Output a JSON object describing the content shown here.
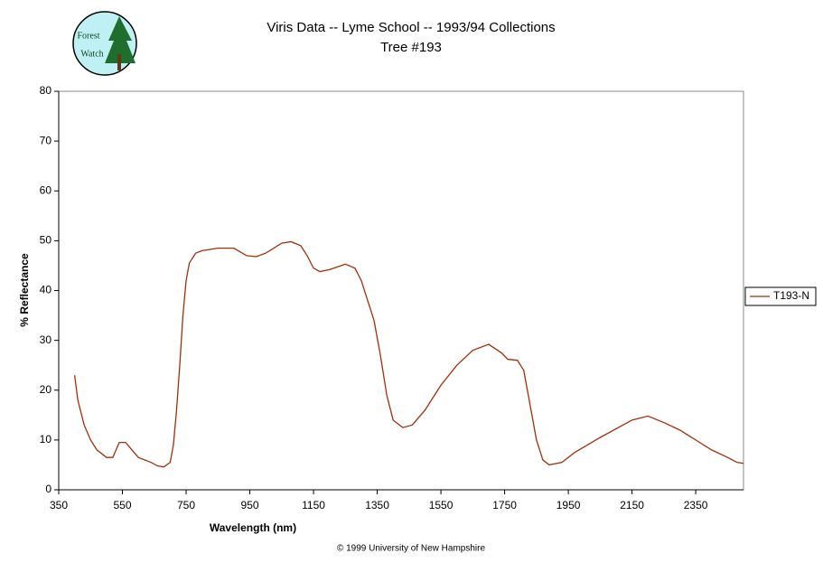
{
  "chart_data": {
    "type": "line",
    "title": "Viris Data -- Lyme School -- 1993/94 Collections",
    "subtitle": "Tree #193",
    "logo_text": [
      "Forest",
      "Watch"
    ],
    "footer": "© 1999 University of New Hampshire",
    "x_label": "Wavelength (nm)",
    "y_label": "% Reflectance",
    "xlim": [
      350,
      2500
    ],
    "xticks": [
      350,
      550,
      750,
      950,
      1150,
      1350,
      1550,
      1750,
      1950,
      2150,
      2350
    ],
    "ylim": [
      0,
      80
    ],
    "yticks": [
      0,
      10,
      20,
      30,
      40,
      50,
      60,
      70,
      80
    ],
    "legend": "right",
    "x": [
      400,
      410,
      430,
      450,
      470,
      500,
      520,
      540,
      560,
      580,
      600,
      640,
      660,
      680,
      700,
      710,
      720,
      730,
      740,
      750,
      760,
      780,
      800,
      850,
      900,
      940,
      970,
      1000,
      1050,
      1080,
      1110,
      1130,
      1150,
      1170,
      1200,
      1250,
      1280,
      1300,
      1320,
      1340,
      1360,
      1380,
      1400,
      1430,
      1460,
      1500,
      1550,
      1600,
      1650,
      1700,
      1740,
      1760,
      1790,
      1810,
      1830,
      1850,
      1870,
      1890,
      1930,
      1970,
      2050,
      2150,
      2200,
      2250,
      2300,
      2350,
      2400,
      2450,
      2480,
      2500
    ],
    "series": [
      {
        "name": "T193-N",
        "color": "#a0300a",
        "values": [
          23,
          18,
          13,
          10,
          8,
          6.5,
          6.5,
          9.5,
          9.5,
          8,
          6.5,
          5.5,
          4.8,
          4.6,
          5.5,
          9,
          16,
          25,
          35,
          42,
          45.5,
          47.5,
          48,
          48.5,
          48.5,
          47,
          46.8,
          47.5,
          49.5,
          49.8,
          49,
          47,
          44.5,
          43.8,
          44.2,
          45.3,
          44.5,
          42,
          38,
          34,
          27,
          19,
          14,
          12.5,
          13,
          16,
          21,
          25,
          28,
          29.2,
          27.5,
          26.2,
          26,
          24,
          17,
          10,
          6,
          5,
          5.5,
          7.5,
          10.5,
          14,
          14.8,
          13.5,
          12,
          10,
          8,
          6.5,
          5.5,
          5.3
        ]
      }
    ]
  }
}
